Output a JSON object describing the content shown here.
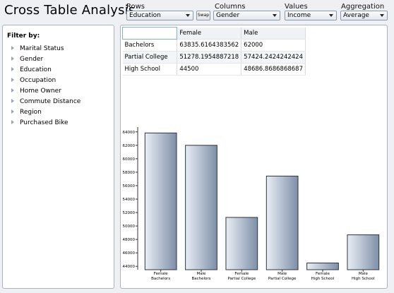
{
  "app": {
    "title": "Cross Table Analysis"
  },
  "controls": {
    "rows": {
      "label": "Rows",
      "value": "Education"
    },
    "swap_label": "Swap",
    "columns": {
      "label": "Columns",
      "value": "Gender"
    },
    "values": {
      "label": "Values",
      "value": "Income"
    },
    "aggregation": {
      "label": "Aggregation type",
      "value": "Average"
    }
  },
  "filter": {
    "title": "Filter by:",
    "items": [
      {
        "label": "Marital Status",
        "icon": "expand-arrow-icon"
      },
      {
        "label": "Gender",
        "icon": "expand-arrow-icon"
      },
      {
        "label": "Education",
        "icon": "expand-arrow-icon"
      },
      {
        "label": "Occupation",
        "icon": "expand-arrow-icon"
      },
      {
        "label": "Home Owner",
        "icon": "expand-arrow-icon"
      },
      {
        "label": "Commute Distance",
        "icon": "expand-arrow-icon"
      },
      {
        "label": "Region",
        "icon": "expand-arrow-icon"
      },
      {
        "label": "Purchased Bike",
        "icon": "expand-arrow-icon"
      }
    ]
  },
  "grid": {
    "columns": [
      "",
      "Female",
      "Male"
    ],
    "rows": [
      {
        "label": "Bachelors",
        "female": "63835.6164383562",
        "male": "62000"
      },
      {
        "label": "Partial College",
        "female": "51278.1954887218",
        "male": "57424.2424242424"
      },
      {
        "label": "High School",
        "female": "44500",
        "male": "48686.8686868687"
      }
    ]
  },
  "chart_data": {
    "type": "bar",
    "categories": [
      [
        "Female",
        "Bachelors"
      ],
      [
        "Male",
        "Bachelors"
      ],
      [
        "Female",
        "Partial College"
      ],
      [
        "Male",
        "Partial College"
      ],
      [
        "Female",
        "High School"
      ],
      [
        "Male",
        "High School"
      ]
    ],
    "values": [
      63835.6164383562,
      62000,
      51278.1954887218,
      57424.2424242424,
      44500,
      48686.8686868687
    ],
    "ylim": [
      43500,
      64500
    ],
    "yticks": [
      "64000",
      "62000",
      "60000",
      "58000",
      "56000",
      "54000",
      "52000",
      "50000",
      "48000",
      "46000",
      "44000"
    ],
    "grid": false,
    "bar_color_dark": "#7e8fa8",
    "bar_color_light": "#e9eef5"
  }
}
